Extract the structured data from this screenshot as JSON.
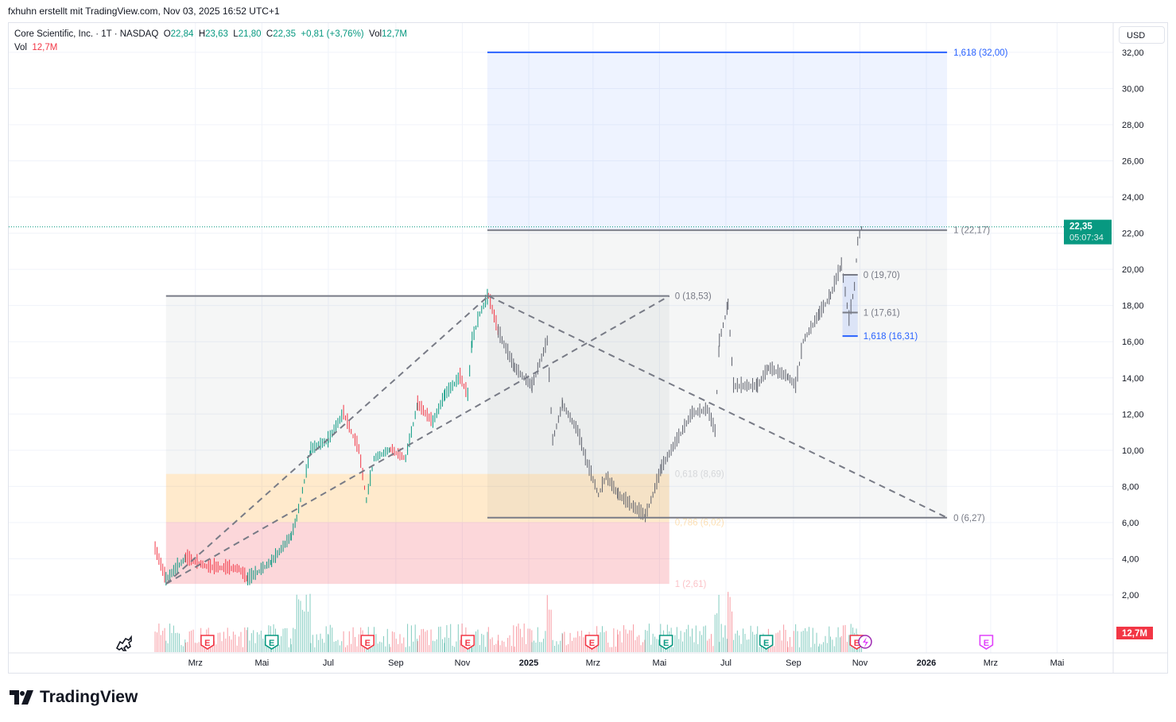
{
  "credit": "fxhuhn erstellt mit TradingView.com, Nov 03, 2025 16:52 UTC+1",
  "legend": {
    "symbol": "Core Scientific, Inc. · 1T · NASDAQ",
    "o_label": "O",
    "o": "22,84",
    "h_label": "H",
    "h": "23,63",
    "l_label": "L",
    "l": "21,80",
    "c_label": "C",
    "c": "22,35",
    "change": "+0,81 (+3,76%)",
    "vol_label": "Vol",
    "vol": "12,7M",
    "vol2_label": "Vol",
    "vol2": "12,7M"
  },
  "currency": "USD",
  "last_price": {
    "price": "22,35",
    "countdown": "05:07:34",
    "color": "#089981"
  },
  "volume_badge": "12,7M",
  "logo": "TradingView",
  "colors": {
    "up": "#089981",
    "down": "#f23645",
    "fib_blue": "#2962ff",
    "fib_gray": "#787b86"
  },
  "chart_data": {
    "type": "line",
    "symbol": "Core Scientific, Inc.",
    "ylim": [
      0,
      33
    ],
    "yticks": [
      "2,00",
      "4,00",
      "6,00",
      "8,00",
      "10,00",
      "12,00",
      "14,00",
      "16,00",
      "18,00",
      "20,00",
      "22,00",
      "24,00",
      "26,00",
      "28,00",
      "30,00",
      "32,00"
    ],
    "xticks": [
      {
        "label": "Mrz",
        "date": "2024-03-01"
      },
      {
        "label": "Mai",
        "date": "2024-05-01"
      },
      {
        "label": "Jul",
        "date": "2024-07-01"
      },
      {
        "label": "Sep",
        "date": "2024-09-01"
      },
      {
        "label": "Nov",
        "date": "2024-11-01"
      },
      {
        "label": "2025",
        "date": "2025-01-01",
        "bold": true
      },
      {
        "label": "Mrz",
        "date": "2025-03-01"
      },
      {
        "label": "Mai",
        "date": "2025-05-01"
      },
      {
        "label": "Jul",
        "date": "2025-07-01"
      },
      {
        "label": "Sep",
        "date": "2025-09-01"
      },
      {
        "label": "Nov",
        "date": "2025-11-01"
      },
      {
        "label": "2026",
        "date": "2026-01-01",
        "bold": true
      },
      {
        "label": "Mrz",
        "date": "2026-03-01"
      },
      {
        "label": "Mai",
        "date": "2026-05-01"
      }
    ],
    "price": [
      [
        "2024-01-24",
        4.5
      ],
      [
        "2024-02-03",
        2.8
      ],
      [
        "2024-02-21",
        4.0
      ],
      [
        "2024-03-13",
        3.5
      ],
      [
        "2024-04-10",
        3.4
      ],
      [
        "2024-04-18",
        2.8
      ],
      [
        "2024-05-10",
        3.8
      ],
      [
        "2024-05-28",
        5.2
      ],
      [
        "2024-06-02",
        6.2
      ],
      [
        "2024-06-15",
        10
      ],
      [
        "2024-07-01",
        10.5
      ],
      [
        "2024-07-15",
        12
      ],
      [
        "2024-07-29",
        10
      ],
      [
        "2024-08-05",
        7.2
      ],
      [
        "2024-08-12",
        9.5
      ],
      [
        "2024-08-27",
        10
      ],
      [
        "2024-09-10",
        9.5
      ],
      [
        "2024-09-21",
        12.5
      ],
      [
        "2024-10-05",
        11.5
      ],
      [
        "2024-10-16",
        13
      ],
      [
        "2024-10-30",
        14
      ],
      [
        "2024-11-06",
        13
      ],
      [
        "2024-11-10",
        16
      ],
      [
        "2024-11-17",
        17.5
      ],
      [
        "2024-11-25",
        18.5
      ],
      [
        "2024-12-04",
        16.5
      ],
      [
        "2024-12-19",
        14.5
      ],
      [
        "2025-01-04",
        13.5
      ],
      [
        "2025-01-18",
        16
      ],
      [
        "2025-01-23",
        10.5
      ],
      [
        "2025-02-01",
        12.5
      ],
      [
        "2025-02-15",
        11
      ],
      [
        "2025-02-22",
        9.5
      ],
      [
        "2025-03-06",
        7.5
      ],
      [
        "2025-03-13",
        8.5
      ],
      [
        "2025-03-24",
        7.5
      ],
      [
        "2025-04-07",
        6.8
      ],
      [
        "2025-04-18",
        6.3
      ],
      [
        "2025-04-25",
        7.5
      ],
      [
        "2025-05-03",
        9
      ],
      [
        "2025-05-17",
        10.5
      ],
      [
        "2025-05-31",
        12
      ],
      [
        "2025-06-14",
        12.2
      ],
      [
        "2025-06-21",
        11
      ],
      [
        "2025-06-25",
        16
      ],
      [
        "2025-07-03",
        18
      ],
      [
        "2025-07-08",
        13.5
      ],
      [
        "2025-07-30",
        13.5
      ],
      [
        "2025-08-09",
        14.5
      ],
      [
        "2025-08-27",
        14
      ],
      [
        "2025-09-03",
        13.5
      ],
      [
        "2025-09-10",
        16
      ],
      [
        "2025-09-25",
        17.5
      ],
      [
        "2025-10-05",
        18.5
      ],
      [
        "2025-10-15",
        20.2
      ],
      [
        "2025-10-22",
        17.2
      ],
      [
        "2025-10-27",
        19
      ],
      [
        "2025-10-30",
        21.5
      ],
      [
        "2025-11-03",
        22.35
      ]
    ],
    "fib_retracements": [
      {
        "start": "2024-02-03",
        "end": "2024-11-25",
        "extend_to": "2025-05-10",
        "levels": [
          {
            "label": "0 (18,53)",
            "value": 18.53
          },
          {
            "label": "0,618 (8,69)",
            "value": 8.69
          },
          {
            "label": "0,786 (6,02)",
            "value": 6.02
          },
          {
            "label": "1 (2,61)",
            "value": 2.61
          }
        ]
      },
      {
        "start": "2024-11-24",
        "extend_to": "2026-01-20",
        "levels": [
          {
            "label": "0 (6,27)",
            "value": 6.27
          },
          {
            "label": "1 (22,17)",
            "value": 22.17
          },
          {
            "label": "1,618 (32,00)",
            "value": 32.0
          }
        ]
      },
      {
        "start": "2025-10-16",
        "extend_to": "2025-10-30",
        "levels": [
          {
            "label": "0 (19,70)",
            "value": 19.7
          },
          {
            "label": "1 (17,61)",
            "value": 17.61
          },
          {
            "label": "1,618 (16,31)",
            "value": 16.31
          }
        ]
      }
    ],
    "trend_lines": [
      [
        [
          "2024-02-03",
          2.61
        ],
        [
          "2024-11-25",
          18.53
        ]
      ],
      [
        [
          "2024-02-03",
          2.61
        ],
        [
          "2025-05-10",
          18.53
        ]
      ],
      [
        [
          "2024-11-25",
          18.53
        ],
        [
          "2026-01-20",
          6.27
        ]
      ]
    ],
    "earnings_markers": [
      {
        "date": "2024-03-12",
        "type": "down"
      },
      {
        "date": "2024-05-10",
        "type": "up"
      },
      {
        "date": "2024-08-06",
        "type": "down"
      },
      {
        "date": "2024-11-06",
        "type": "down"
      },
      {
        "date": "2025-02-28",
        "type": "down"
      },
      {
        "date": "2025-05-07",
        "type": "up"
      },
      {
        "date": "2025-08-07",
        "type": "up"
      },
      {
        "date": "2025-10-29",
        "type": "down"
      },
      {
        "date": "2026-02-25",
        "type": "future"
      }
    ]
  }
}
